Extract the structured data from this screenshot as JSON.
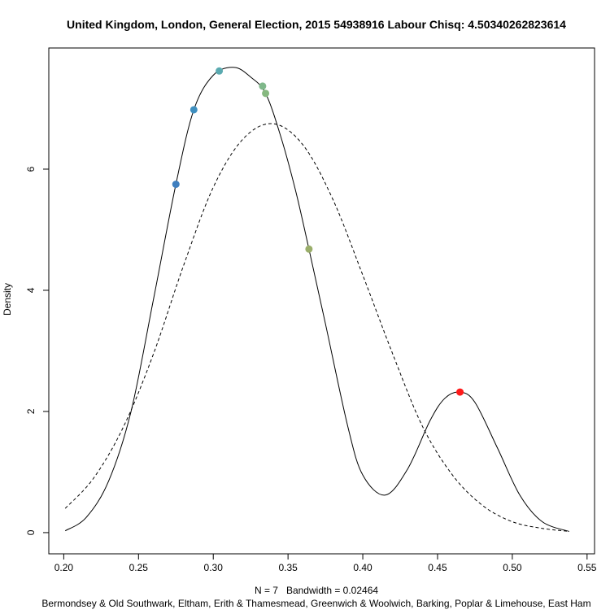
{
  "chart_data": {
    "type": "line",
    "title": "United Kingdom, London, General Election, 2015 54938916 Labour Chisq: 4.50340262823614",
    "ylabel": "Density",
    "xlabel": "N = 7   Bandwidth = 0.02464",
    "subtitle": "Bermondsey & Old Southwark, Eltham, Erith & Thamesmead, Greenwich & Woolwich, Barking, Poplar & Limehouse, East Ham",
    "xlim": [
      0.19,
      0.555
    ],
    "ylim": [
      -0.35,
      8.0
    ],
    "x_ticks": [
      0.2,
      0.25,
      0.3,
      0.35,
      0.4,
      0.45,
      0.5,
      0.55
    ],
    "x_tick_labels": [
      "0.20",
      "0.25",
      "0.30",
      "0.35",
      "0.40",
      "0.45",
      "0.50",
      "0.55"
    ],
    "y_ticks": [
      0,
      2,
      4,
      6
    ],
    "y_tick_labels": [
      "0",
      "2",
      "4",
      "6"
    ],
    "bandwidth": 0.02464,
    "series": [
      {
        "style": "solid",
        "color": "#000000",
        "x": [
          0.201,
          0.215,
          0.23,
          0.245,
          0.26,
          0.275,
          0.287,
          0.3,
          0.314,
          0.325,
          0.335,
          0.345,
          0.355,
          0.364,
          0.375,
          0.39,
          0.4,
          0.415,
          0.43,
          0.445,
          0.455,
          0.465,
          0.475,
          0.49,
          0.505,
          0.52,
          0.538
        ],
        "y": [
          0.03,
          0.25,
          0.85,
          2.0,
          3.85,
          5.75,
          6.98,
          7.55,
          7.68,
          7.52,
          7.25,
          6.55,
          5.65,
          4.68,
          3.45,
          1.75,
          0.95,
          0.62,
          1.05,
          1.85,
          2.22,
          2.32,
          2.15,
          1.4,
          0.62,
          0.18,
          0.02
        ]
      },
      {
        "style": "dashed",
        "color": "#000000",
        "x": [
          0.201,
          0.22,
          0.24,
          0.26,
          0.28,
          0.3,
          0.32,
          0.34,
          0.36,
          0.38,
          0.4,
          0.42,
          0.44,
          0.46,
          0.48,
          0.5,
          0.52,
          0.538
        ],
        "y": [
          0.4,
          0.9,
          1.75,
          2.95,
          4.4,
          5.7,
          6.5,
          6.75,
          6.4,
          5.5,
          4.25,
          2.95,
          1.75,
          0.95,
          0.45,
          0.18,
          0.07,
          0.02
        ]
      }
    ],
    "points": [
      {
        "x": 0.275,
        "y": 5.75,
        "color": "#3f7fbf"
      },
      {
        "x": 0.287,
        "y": 6.98,
        "color": "#3f8fbf"
      },
      {
        "x": 0.304,
        "y": 7.62,
        "color": "#5aaab0"
      },
      {
        "x": 0.333,
        "y": 7.37,
        "color": "#7fb88a"
      },
      {
        "x": 0.335,
        "y": 7.25,
        "color": "#86b87f"
      },
      {
        "x": 0.364,
        "y": 4.68,
        "color": "#9aae6a"
      },
      {
        "x": 0.465,
        "y": 2.32,
        "color": "#ff1a1a"
      }
    ]
  }
}
